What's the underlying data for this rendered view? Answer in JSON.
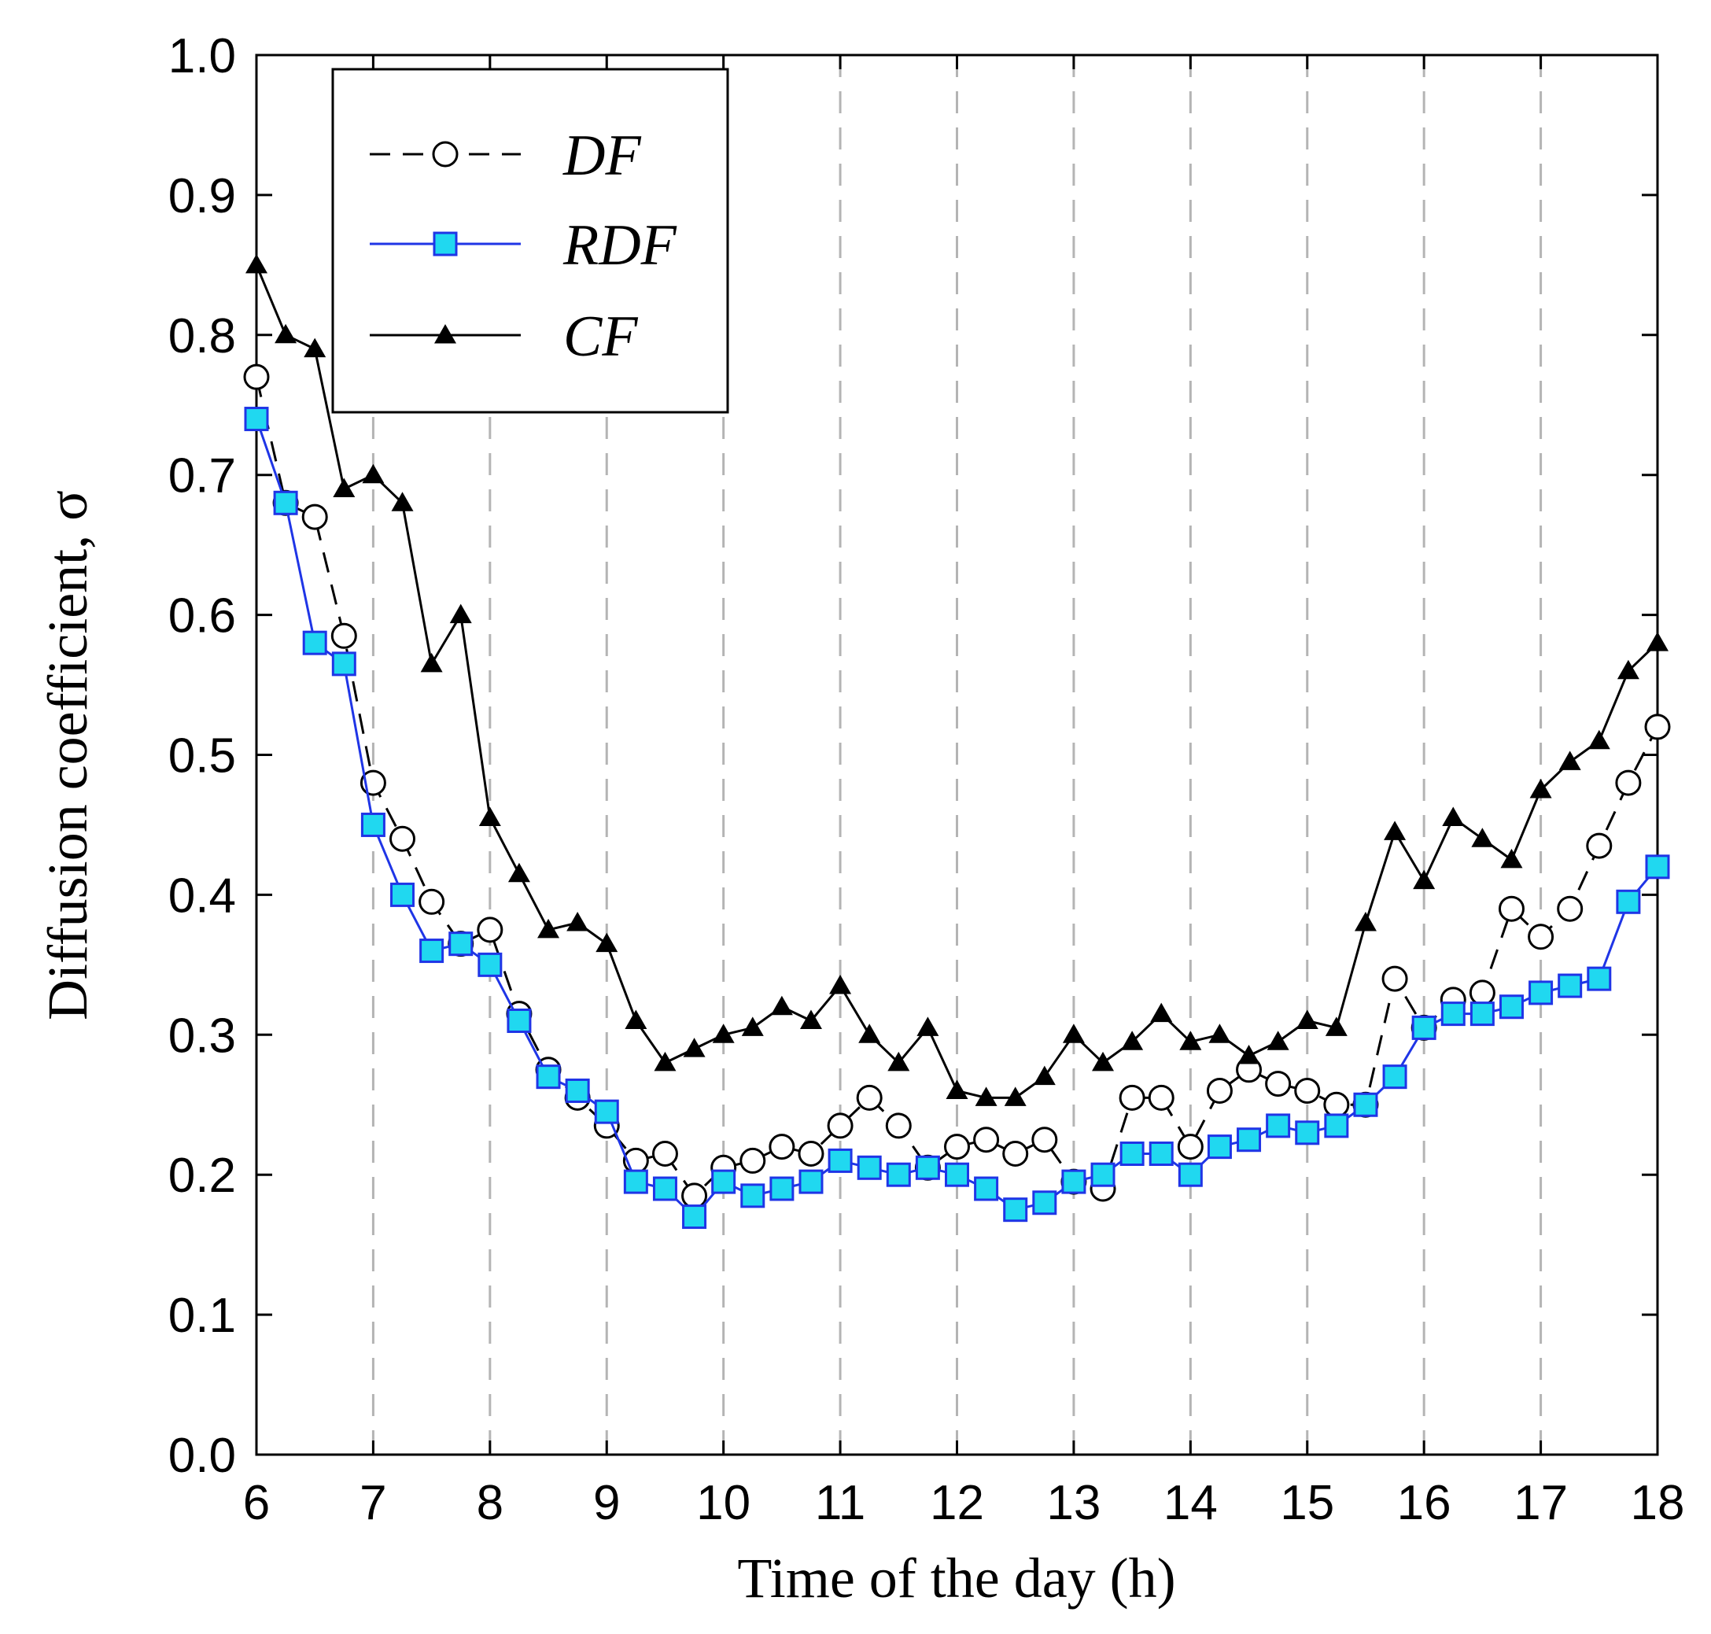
{
  "chart_data": {
    "type": "line",
    "title": "",
    "xlabel": "Time of the day (h)",
    "ylabel": "Diffusion coefficient, σ",
    "xlim": [
      6,
      18
    ],
    "ylim": [
      0.0,
      1.0
    ],
    "x_ticks": [
      "6",
      "7",
      "8",
      "9",
      "10",
      "11",
      "12",
      "13",
      "14",
      "15",
      "16",
      "17",
      "18"
    ],
    "y_ticks": [
      "0.0",
      "0.1",
      "0.2",
      "0.3",
      "0.4",
      "0.5",
      "0.6",
      "0.7",
      "0.8",
      "0.9",
      "1.0"
    ],
    "grid": "vertical dashed at each hour",
    "legend_position": "top-left",
    "x": [
      6.0,
      6.25,
      6.5,
      6.75,
      7.0,
      7.25,
      7.5,
      7.75,
      8.0,
      8.25,
      8.5,
      8.75,
      9.0,
      9.25,
      9.5,
      9.75,
      10.0,
      10.25,
      10.5,
      10.75,
      11.0,
      11.25,
      11.5,
      11.75,
      12.0,
      12.25,
      12.5,
      12.75,
      13.0,
      13.25,
      13.5,
      13.75,
      14.0,
      14.25,
      14.5,
      14.75,
      15.0,
      15.25,
      15.5,
      15.75,
      16.0,
      16.25,
      16.5,
      16.75,
      17.0,
      17.25,
      17.5,
      17.75,
      18.0
    ],
    "series": [
      {
        "name": "DF",
        "style": "dashed black line, open circle markers",
        "color": "#000000",
        "values": [
          0.77,
          0.68,
          0.67,
          0.585,
          0.48,
          0.44,
          0.395,
          0.365,
          0.375,
          0.315,
          0.275,
          0.255,
          0.235,
          0.21,
          0.215,
          0.185,
          0.205,
          0.21,
          0.22,
          0.215,
          0.235,
          0.255,
          0.235,
          0.205,
          0.22,
          0.225,
          0.215,
          0.225,
          0.195,
          0.19,
          0.255,
          0.255,
          0.22,
          0.26,
          0.275,
          0.265,
          0.26,
          0.25,
          0.25,
          0.34,
          0.305,
          0.325,
          0.33,
          0.39,
          0.37,
          0.39,
          0.435,
          0.48,
          0.52
        ]
      },
      {
        "name": "RDF",
        "style": "blue line, cyan square markers",
        "color": "#1f35e6",
        "marker_color": "#20d8f0",
        "values": [
          0.74,
          0.68,
          0.58,
          0.565,
          0.45,
          0.4,
          0.36,
          0.365,
          0.35,
          0.31,
          0.27,
          0.26,
          0.245,
          0.195,
          0.19,
          0.17,
          0.195,
          0.185,
          0.19,
          0.195,
          0.21,
          0.205,
          0.2,
          0.205,
          0.2,
          0.19,
          0.175,
          0.18,
          0.195,
          0.2,
          0.215,
          0.215,
          0.2,
          0.22,
          0.225,
          0.235,
          0.23,
          0.235,
          0.25,
          0.27,
          0.305,
          0.315,
          0.315,
          0.32,
          0.33,
          0.335,
          0.34,
          0.395,
          0.42
        ]
      },
      {
        "name": "CF",
        "style": "solid black line, filled triangle markers",
        "color": "#000000",
        "values": [
          0.85,
          0.8,
          0.79,
          0.69,
          0.7,
          0.68,
          0.565,
          0.6,
          0.455,
          0.415,
          0.375,
          0.38,
          0.365,
          0.31,
          0.28,
          0.29,
          0.3,
          0.305,
          0.32,
          0.31,
          0.335,
          0.3,
          0.28,
          0.305,
          0.26,
          0.255,
          0.255,
          0.27,
          0.3,
          0.28,
          0.295,
          0.315,
          0.295,
          0.3,
          0.285,
          0.295,
          0.31,
          0.305,
          0.38,
          0.445,
          0.41,
          0.455,
          0.44,
          0.425,
          0.475,
          0.495,
          0.51,
          0.56,
          0.58
        ]
      }
    ],
    "colors": {
      "axis": "#000000",
      "grid": "#b4b4b4",
      "background": "#ffffff"
    }
  }
}
